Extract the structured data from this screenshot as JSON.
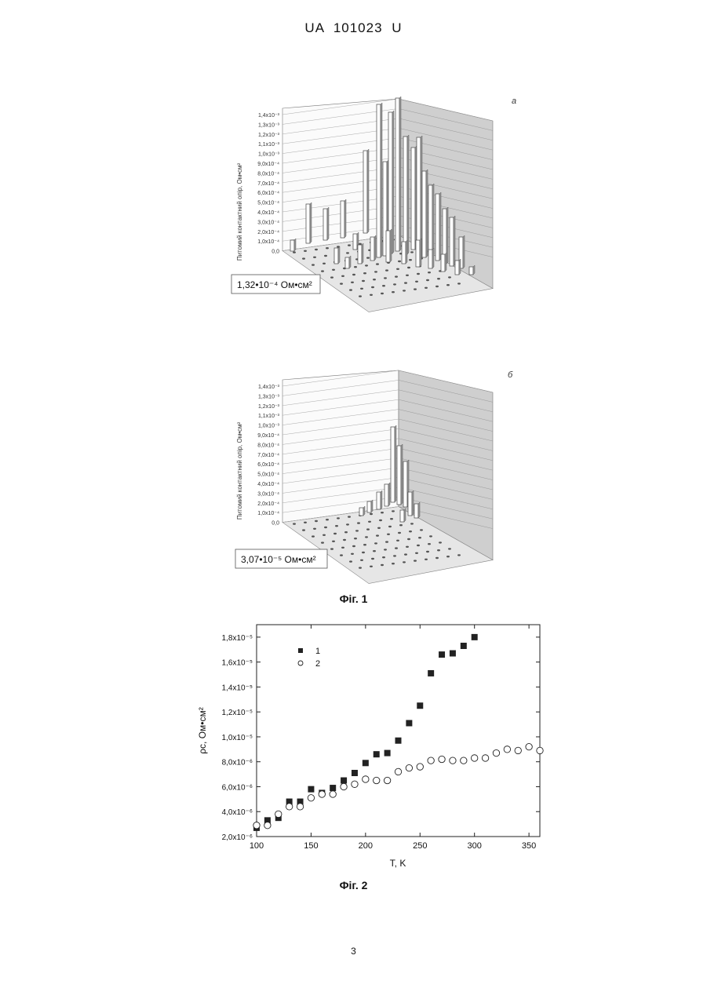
{
  "header": {
    "doc_id": "UA  101023  U"
  },
  "figure1": {
    "caption": "Фіг. 1",
    "panel_a": {
      "label": "а",
      "ylabel": "Питомий контактний опір, Ом•см²",
      "yticks": [
        "1,4x10⁻³",
        "1,3x10⁻³",
        "1,2x10⁻³",
        "1,1x10⁻³",
        "1,0x10⁻³",
        "9,0x10⁻⁴",
        "8,0x10⁻⁴",
        "7,0x10⁻⁴",
        "6,0x10⁻⁴",
        "5,0x10⁻⁴",
        "4,0x10⁻⁴",
        "3,0x10⁻⁴",
        "2,0x10⁻⁴",
        "1,0x10⁻⁴",
        "0,0"
      ],
      "value_box": "1,32•10⁻⁴ Ом•см²"
    },
    "panel_b": {
      "label": "б",
      "ylabel": "Питомий контактний опір, Ом•см²",
      "yticks": [
        "1,4x10⁻³",
        "1,3x10⁻³",
        "1,2x10⁻³",
        "1,1x10⁻³",
        "1,0x10⁻³",
        "9,0x10⁻⁴",
        "8,0x10⁻⁴",
        "7,0x10⁻⁴",
        "6,0x10⁻⁴",
        "5,0x10⁻⁴",
        "4,0x10⁻⁴",
        "3,0x10⁻⁴",
        "2,0x10⁻⁴",
        "1,0x10⁻⁴",
        "0,0"
      ],
      "value_box": "3,07•10⁻⁵ Ом•см²"
    }
  },
  "figure2": {
    "caption": "Фіг. 2",
    "chart_data": {
      "type": "scatter",
      "xlabel": "T, K",
      "ylabel": "ρc, Ом•см²",
      "xlim": [
        100,
        360
      ],
      "ylim": [
        2e-06,
        1.9e-05
      ],
      "xticks": [
        100,
        150,
        200,
        250,
        300,
        350
      ],
      "yticks": [
        {
          "value": 2e-06,
          "label": "2,0x10⁻⁶"
        },
        {
          "value": 4e-06,
          "label": "4,0x10⁻⁶"
        },
        {
          "value": 6e-06,
          "label": "6,0x10⁻⁶"
        },
        {
          "value": 8e-06,
          "label": "8,0x10⁻⁶"
        },
        {
          "value": 1e-05,
          "label": "1,0x10⁻⁵"
        },
        {
          "value": 1.2e-05,
          "label": "1,2x10⁻⁵"
        },
        {
          "value": 1.4e-05,
          "label": "1,4x10⁻⁵"
        },
        {
          "value": 1.6e-05,
          "label": "1,6x10⁻⁵"
        },
        {
          "value": 1.8e-05,
          "label": "1,8x10⁻⁵"
        }
      ],
      "legend_position": "top-left",
      "series": [
        {
          "name": "1",
          "marker": "filled-square",
          "color": "#222222",
          "x": [
            100,
            110,
            120,
            130,
            140,
            150,
            160,
            170,
            180,
            190,
            200,
            210,
            220,
            230,
            240,
            250,
            260,
            270,
            280,
            290,
            300
          ],
          "y": [
            2.7e-06,
            3.3e-06,
            3.5e-06,
            4.8e-06,
            4.8e-06,
            5.8e-06,
            5.5e-06,
            5.9e-06,
            6.5e-06,
            7.1e-06,
            7.9e-06,
            8.6e-06,
            8.7e-06,
            9.7e-06,
            1.11e-05,
            1.25e-05,
            1.51e-05,
            1.66e-05,
            1.67e-05,
            1.73e-05,
            1.8e-05
          ]
        },
        {
          "name": "2",
          "marker": "open-circle",
          "color": "#222222",
          "x": [
            100,
            110,
            120,
            130,
            140,
            150,
            160,
            170,
            180,
            190,
            200,
            210,
            220,
            230,
            240,
            250,
            260,
            270,
            280,
            290,
            300,
            310,
            320,
            330,
            340,
            350,
            360
          ],
          "y": [
            2.9e-06,
            2.9e-06,
            3.8e-06,
            4.4e-06,
            4.4e-06,
            5.1e-06,
            5.4e-06,
            5.4e-06,
            6e-06,
            6.2e-06,
            6.6e-06,
            6.5e-06,
            6.5e-06,
            7.2e-06,
            7.5e-06,
            7.6e-06,
            8.1e-06,
            8.2e-06,
            8.1e-06,
            8.1e-06,
            8.3e-06,
            8.3e-06,
            8.7e-06,
            9e-06,
            8.9e-06,
            9.2e-06,
            8.9e-06
          ]
        }
      ]
    }
  },
  "page_number": "3"
}
